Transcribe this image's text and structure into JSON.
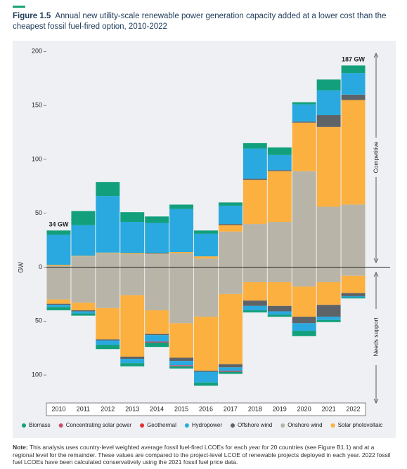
{
  "chart_data": {
    "type": "bar",
    "stacked": true,
    "figure_label": "Figure 1.5",
    "title": "Annual new utility-scale renewable power generation capacity added at a lower cost than the cheapest fossil fuel-fired option, 2010-2022",
    "y_label": "GW",
    "region_labels": [
      "Competitive",
      "Needs support"
    ],
    "categories": [
      "2010",
      "2011",
      "2012",
      "2013",
      "2014",
      "2015",
      "2016",
      "2017",
      "2018",
      "2019",
      "2020",
      "2021",
      "2022"
    ],
    "series": [
      {
        "name": "Onshore wind",
        "color": "#b8b5a8",
        "values": [
          1,
          10,
          13,
          12,
          12,
          13,
          8,
          33,
          40,
          42,
          89,
          56,
          58
        ],
        "values_needs_support": [
          -30,
          -33,
          -38,
          -26,
          -40,
          -52,
          -46,
          -25,
          -14,
          -14,
          -18,
          -14,
          -8
        ]
      },
      {
        "name": "Solar photovoltaic",
        "color": "#fbb040",
        "values": [
          1,
          0.5,
          0.5,
          1,
          0.5,
          1,
          2,
          6,
          41,
          47,
          45,
          74,
          97
        ],
        "values_needs_support": [
          -4,
          -7,
          -29,
          -57,
          -22,
          -32,
          -50,
          -65,
          -17,
          -22,
          -28,
          -21,
          -16
        ]
      },
      {
        "name": "Offshore wind",
        "color": "#5e6368",
        "values": [
          0,
          0,
          0,
          0,
          0.5,
          0,
          0,
          1,
          1,
          1,
          1,
          11,
          5
        ],
        "values_needs_support": [
          -1,
          -1,
          -1,
          -2,
          -1,
          -3,
          -1,
          -3,
          -5,
          -5,
          -6,
          -11,
          -3
        ]
      },
      {
        "name": "Hydropower",
        "color": "#29a9df",
        "values": [
          28,
          28.5,
          52.5,
          29,
          28,
          40,
          21,
          17,
          28,
          14,
          16,
          23,
          20
        ],
        "values_needs_support": [
          -2,
          -2,
          -4,
          -4,
          -6,
          -4,
          -10,
          -3,
          -4,
          -3,
          -7,
          -3,
          -1
        ]
      },
      {
        "name": "Geothermal",
        "color": "#e2312f",
        "values": [
          0,
          0,
          0,
          0,
          0,
          0,
          0,
          0,
          0,
          0,
          0,
          0,
          0
        ],
        "values_needs_support": [
          0,
          0,
          0,
          0,
          0,
          0,
          0,
          0,
          0,
          0,
          0,
          0,
          0
        ]
      },
      {
        "name": "Concentrating solar power",
        "color": "#c4506f",
        "values": [
          0,
          0,
          0,
          0,
          0,
          0,
          0,
          0,
          0,
          0,
          0,
          0,
          0
        ],
        "values_needs_support": [
          0,
          0,
          0,
          0,
          -1,
          -1,
          0,
          -1,
          0,
          0,
          0,
          0,
          0
        ]
      },
      {
        "name": "Biomass",
        "color": "#12a07c",
        "values": [
          4,
          13,
          13,
          9,
          6,
          4,
          3,
          3,
          5,
          7,
          2,
          10,
          7
        ],
        "values_needs_support": [
          -3,
          -2,
          -4,
          -3,
          -4,
          -2,
          -3,
          -2,
          -2,
          -2,
          -5,
          -2,
          -1
        ]
      }
    ],
    "legend_order": [
      6,
      5,
      4,
      3,
      2,
      0,
      1
    ],
    "annotations": [
      {
        "text": "34 GW",
        "category": "2010"
      },
      {
        "text": "187 GW",
        "category": "2022"
      }
    ],
    "ylim": [
      -126,
      210
    ],
    "yticks": [
      {
        "value": -100,
        "label": "100"
      },
      {
        "value": -50,
        "label": "50"
      },
      0,
      50,
      100,
      150,
      200
    ],
    "note_label": "Note:",
    "note": "This analysis uses country-level weighted average fossil fuel-fired LCOEs for each year for 20 countries (see Figure B1.1) and at a regional level for the remainder. These values are compared to the project-level LCOE of renewable projects deployed in each year. 2022 fossil fuel LCOEs have been calculated conservatively using the 2021 fossil fuel price data."
  }
}
